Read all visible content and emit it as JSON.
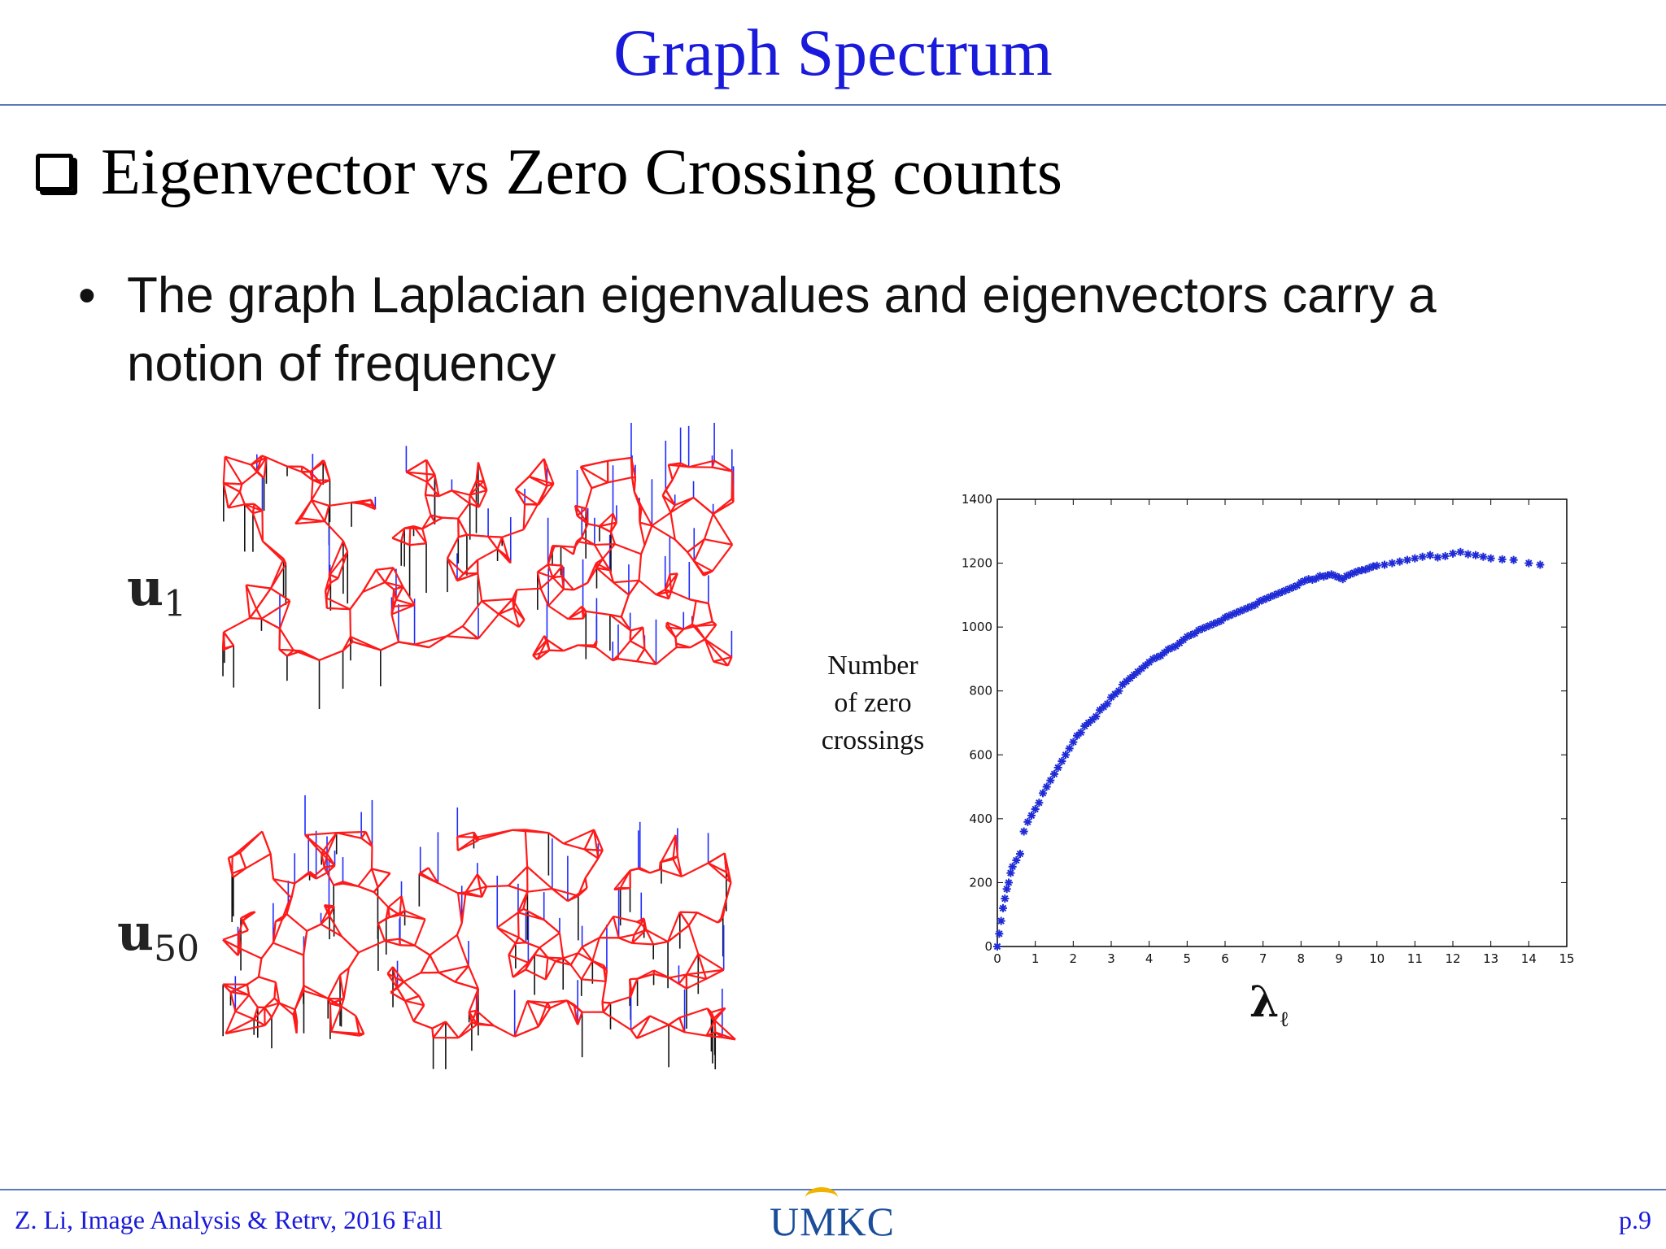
{
  "slide": {
    "title": "Graph Spectrum",
    "heading": "Eigenvector vs Zero Crossing counts",
    "bullet": "The graph Laplacian eigenvalues and eigenvectors carry a notion of frequency",
    "graph_labels": {
      "u1_base": "u",
      "u1_sub": "1",
      "u50_base": "u",
      "u50_sub": "50"
    }
  },
  "footer": {
    "left": "Z. Li,  Image Analysis & Retrv, 2016 Fall",
    "logo": "UMKC",
    "page": "p.9"
  },
  "colors": {
    "title": "#1a1adb",
    "mesh": "#ff1a1a",
    "positive_stem": "#1f2bff",
    "negative_stem": "#111111",
    "points": "#1f2bd6"
  },
  "chart_data": {
    "type": "scatter",
    "title": "",
    "xlabel": "λℓ",
    "ylabel": "Number of zero crossings",
    "xlim": [
      0,
      15
    ],
    "ylim": [
      0,
      1400
    ],
    "xticks": [
      0,
      1,
      2,
      3,
      4,
      5,
      6,
      7,
      8,
      9,
      10,
      11,
      12,
      13,
      14,
      15
    ],
    "yticks": [
      0,
      200,
      400,
      600,
      800,
      1000,
      1200,
      1400
    ],
    "grid": false,
    "marker": "asterisk",
    "series": [
      {
        "x": [
          0.0,
          0.05,
          0.1,
          0.15,
          0.2,
          0.25,
          0.3,
          0.35,
          0.4,
          0.5,
          0.6,
          0.7,
          0.8,
          0.9,
          1.0,
          1.1,
          1.2,
          1.3,
          1.4,
          1.5,
          1.6,
          1.7,
          1.8,
          1.9,
          2.0,
          2.1,
          2.2,
          2.3,
          2.4,
          2.5,
          2.6,
          2.7,
          2.8,
          2.9,
          3.0,
          3.1,
          3.2,
          3.3,
          3.4,
          3.5,
          3.6,
          3.7,
          3.8,
          3.9,
          4.0,
          4.1,
          4.2,
          4.3,
          4.4,
          4.5,
          4.6,
          4.7,
          4.8,
          4.9,
          5.0,
          5.1,
          5.2,
          5.3,
          5.4,
          5.5,
          5.6,
          5.7,
          5.8,
          5.9,
          6.0,
          6.1,
          6.2,
          6.3,
          6.4,
          6.5,
          6.6,
          6.7,
          6.8,
          6.9,
          7.0,
          7.1,
          7.2,
          7.3,
          7.4,
          7.5,
          7.6,
          7.7,
          7.8,
          7.9,
          8.0,
          8.1,
          8.2,
          8.3,
          8.4,
          8.5,
          8.6,
          8.7,
          8.8,
          8.9,
          9.0,
          9.1,
          9.2,
          9.3,
          9.4,
          9.5,
          9.6,
          9.7,
          9.8,
          9.9,
          10.0,
          10.2,
          10.4,
          10.6,
          10.8,
          11.0,
          11.2,
          11.4,
          11.6,
          11.8,
          12.0,
          12.2,
          12.4,
          12.6,
          12.8,
          13.0,
          13.3,
          13.6,
          14.0,
          14.3
        ],
        "y": [
          0,
          40,
          80,
          120,
          150,
          180,
          200,
          230,
          250,
          270,
          290,
          360,
          390,
          410,
          430,
          450,
          480,
          500,
          520,
          540,
          560,
          580,
          600,
          620,
          640,
          660,
          670,
          690,
          700,
          710,
          720,
          740,
          750,
          760,
          780,
          790,
          800,
          820,
          830,
          840,
          850,
          860,
          870,
          880,
          890,
          900,
          905,
          910,
          920,
          930,
          935,
          940,
          950,
          960,
          970,
          975,
          980,
          990,
          995,
          1000,
          1005,
          1010,
          1015,
          1020,
          1030,
          1035,
          1040,
          1045,
          1050,
          1055,
          1060,
          1065,
          1070,
          1080,
          1085,
          1090,
          1095,
          1100,
          1105,
          1110,
          1115,
          1120,
          1125,
          1130,
          1140,
          1145,
          1150,
          1148,
          1152,
          1160,
          1158,
          1162,
          1165,
          1160,
          1155,
          1150,
          1160,
          1165,
          1170,
          1175,
          1178,
          1180,
          1185,
          1190,
          1192,
          1195,
          1200,
          1205,
          1210,
          1215,
          1220,
          1225,
          1218,
          1222,
          1230,
          1235,
          1228,
          1225,
          1220,
          1215,
          1212,
          1210,
          1200,
          1195
        ]
      }
    ]
  }
}
